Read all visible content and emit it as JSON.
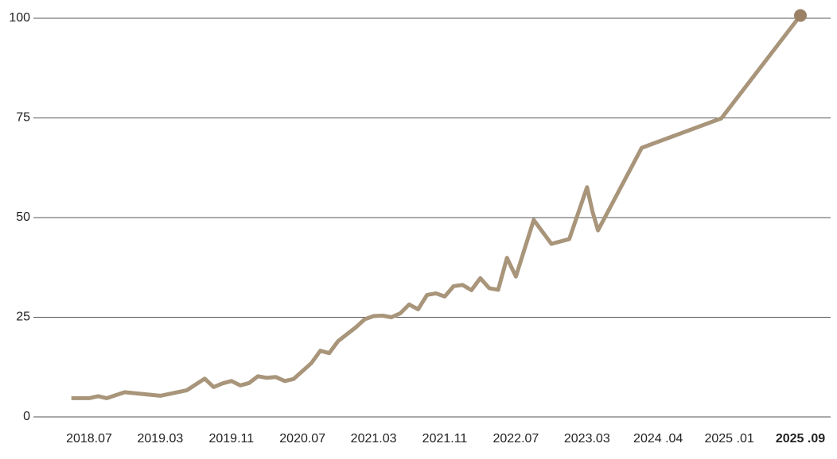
{
  "chart_data": {
    "type": "line",
    "x": [
      "2018-05",
      "2018-07",
      "2018-08",
      "2018-09",
      "2018-11",
      "2019-03",
      "2019-06",
      "2019-08",
      "2019-09",
      "2019-10",
      "2019-11",
      "2019-12",
      "2020-01",
      "2020-02",
      "2020-03",
      "2020-04",
      "2020-05",
      "2020-06",
      "2020-07",
      "2020-08",
      "2020-09",
      "2020-10",
      "2020-11",
      "2021-01",
      "2021-02",
      "2021-03",
      "2021-04",
      "2021-05",
      "2021-06",
      "2021-07",
      "2021-08",
      "2021-09",
      "2021-10",
      "2021-11",
      "2021-12",
      "2022-01",
      "2022-02",
      "2022-03",
      "2022-04",
      "2022-05",
      "2022-06",
      "2022-07",
      "2022-09",
      "2022-11",
      "2023-01",
      "2023-03",
      "2023-04",
      "2023-05",
      "2024-01",
      "2024-12",
      "2025-09"
    ],
    "series": [
      {
        "color": "#a8957a",
        "values": [
          4.7,
          4.7,
          5.2,
          4.7,
          6.2,
          5.3,
          6.7,
          9.6,
          7.5,
          8.4,
          9.0,
          7.9,
          8.5,
          10.2,
          9.8,
          10.0,
          9.0,
          9.5,
          11.5,
          13.5,
          16.6,
          16.0,
          19.0,
          22.5,
          24.5,
          25.3,
          25.4,
          25.0,
          26.0,
          28.2,
          27.0,
          30.6,
          31.0,
          30.2,
          32.8,
          33.1,
          31.8,
          34.8,
          32.3,
          31.9,
          39.9,
          35.2,
          49.4,
          43.4,
          44.6,
          57.6,
          51.5,
          46.8,
          67.5,
          74.9,
          100.7
        ]
      }
    ],
    "ylim": [
      0,
      100
    ],
    "yticks": [
      0,
      25,
      50,
      75,
      100
    ],
    "xticks": [
      {
        "value": "2018-07",
        "label": "2018.07"
      },
      {
        "value": "2019-03",
        "label": "2019.03"
      },
      {
        "value": "2019-11",
        "label": "2019.11"
      },
      {
        "value": "2020-07",
        "label": "2020.07"
      },
      {
        "value": "2021-03",
        "label": "2021.03"
      },
      {
        "value": "2021-11",
        "label": "2021.11"
      },
      {
        "value": "2022-07",
        "label": "2022.07"
      },
      {
        "value": "2023-03",
        "label": "2023.03"
      },
      {
        "value": "2024-04",
        "label": "2024 .04"
      },
      {
        "value": "2025-01",
        "label": "2025 .01"
      },
      {
        "value": "2025-09",
        "label": "2025 .09"
      }
    ],
    "grid": true,
    "end_marker_color": "#9b8266"
  }
}
